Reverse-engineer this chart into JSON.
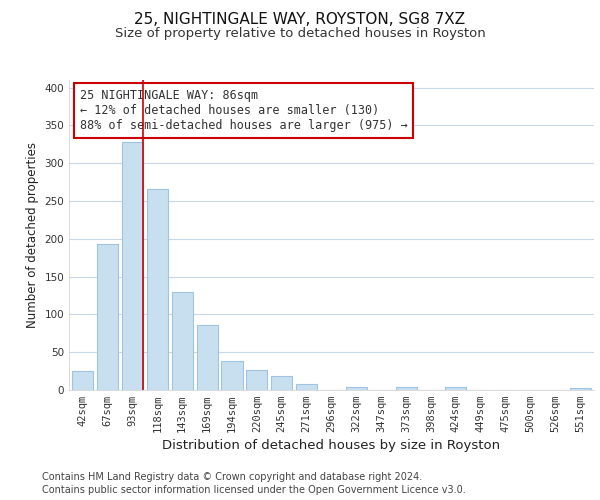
{
  "title": "25, NIGHTINGALE WAY, ROYSTON, SG8 7XZ",
  "subtitle": "Size of property relative to detached houses in Royston",
  "xlabel": "Distribution of detached houses by size in Royston",
  "ylabel": "Number of detached properties",
  "bar_labels": [
    "42sqm",
    "67sqm",
    "93sqm",
    "118sqm",
    "143sqm",
    "169sqm",
    "194sqm",
    "220sqm",
    "245sqm",
    "271sqm",
    "296sqm",
    "322sqm",
    "347sqm",
    "373sqm",
    "398sqm",
    "424sqm",
    "449sqm",
    "475sqm",
    "500sqm",
    "526sqm",
    "551sqm"
  ],
  "bar_values": [
    25,
    193,
    328,
    266,
    130,
    86,
    38,
    26,
    18,
    8,
    0,
    4,
    0,
    4,
    0,
    4,
    0,
    0,
    0,
    0,
    3
  ],
  "bar_color": "#c8dff0",
  "bar_edge_color": "#a0c4e0",
  "highlight_line_color": "#cc0000",
  "highlight_bar_index": 2,
  "ylim": [
    0,
    410
  ],
  "yticks": [
    0,
    50,
    100,
    150,
    200,
    250,
    300,
    350,
    400
  ],
  "annotation_text": "25 NIGHTINGALE WAY: 86sqm\n← 12% of detached houses are smaller (130)\n88% of semi-detached houses are larger (975) →",
  "annotation_box_color": "#ffffff",
  "annotation_box_edge": "#cc0000",
  "footer_line1": "Contains HM Land Registry data © Crown copyright and database right 2024.",
  "footer_line2": "Contains public sector information licensed under the Open Government Licence v3.0.",
  "bg_color": "#ffffff",
  "plot_bg_color": "#ffffff",
  "grid_color": "#c8d8e8",
  "title_fontsize": 11,
  "subtitle_fontsize": 9.5,
  "xlabel_fontsize": 9.5,
  "ylabel_fontsize": 8.5,
  "tick_fontsize": 7.5,
  "annotation_fontsize": 8.5,
  "footer_fontsize": 7
}
